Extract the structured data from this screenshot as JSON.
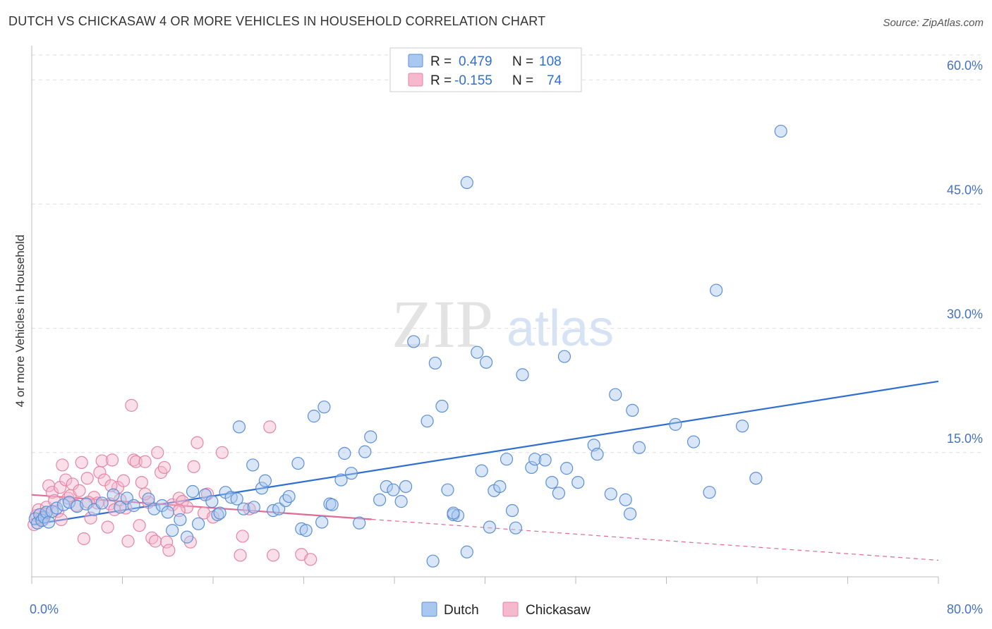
{
  "header": {
    "title": "DUTCH VS CHICKASAW 4 OR MORE VEHICLES IN HOUSEHOLD CORRELATION CHART",
    "source": "Source: ZipAtlas.com"
  },
  "watermark": {
    "zip": "ZIP",
    "atlas": "atlas"
  },
  "colors": {
    "dutch_fill": "#a9c8f0",
    "dutch_stroke": "#5b8fd6",
    "dutch_line": "#2f6fd1",
    "chickasaw_fill": "#f5b8cc",
    "chickasaw_stroke": "#e486a6",
    "chickasaw_line": "#e06a94",
    "grid": "#dddddd",
    "axis_text": "#4472c4"
  },
  "legend": {
    "rows": [
      {
        "r_label": "R =",
        "r_value": "0.479",
        "n_label": "N =",
        "n_value": "108"
      },
      {
        "r_label": "R =",
        "r_value": "-0.155",
        "n_label": "N =",
        "n_value": "74"
      }
    ]
  },
  "chart_data": {
    "type": "scatter",
    "title": "DUTCH VS CHICKASAW 4 OR MORE VEHICLES IN HOUSEHOLD CORRELATION CHART",
    "xlabel": "",
    "ylabel": "4 or more Vehicles in Household",
    "xlim": [
      0,
      80
    ],
    "ylim": [
      0,
      63
    ],
    "x_tick_labels": [
      "0.0%",
      "80.0%"
    ],
    "y_ticks": [
      15,
      30,
      45,
      60
    ],
    "y_tick_labels": [
      "15.0%",
      "30.0%",
      "45.0%",
      "60.0%"
    ],
    "grid": true,
    "legend_position": "top-center",
    "series": [
      {
        "name": "Dutch",
        "R": 0.479,
        "N": 108,
        "trend": {
          "x": [
            0,
            80
          ],
          "y": [
            6.3,
            23.6
          ],
          "dashed_from": null
        },
        "points": [
          [
            0.3,
            7.0
          ],
          [
            0.5,
            6.5
          ],
          [
            0.7,
            7.5
          ],
          [
            0.9,
            6.8
          ],
          [
            1.1,
            7.2
          ],
          [
            1.3,
            7.8
          ],
          [
            1.5,
            6.6
          ],
          [
            1.8,
            7.9
          ],
          [
            2.2,
            8.3
          ],
          [
            2.8,
            8.7
          ],
          [
            3.3,
            9.0
          ],
          [
            4.0,
            8.5
          ],
          [
            4.8,
            8.8
          ],
          [
            5.5,
            8.1
          ],
          [
            6.2,
            8.9
          ],
          [
            7.2,
            9.9
          ],
          [
            7.8,
            8.4
          ],
          [
            8.4,
            9.5
          ],
          [
            9.0,
            8.6
          ],
          [
            10.3,
            9.4
          ],
          [
            10.8,
            8.2
          ],
          [
            11.5,
            8.6
          ],
          [
            12.0,
            7.8
          ],
          [
            12.4,
            5.6
          ],
          [
            13.1,
            6.9
          ],
          [
            13.7,
            4.8
          ],
          [
            14.2,
            10.3
          ],
          [
            14.7,
            6.4
          ],
          [
            15.3,
            9.9
          ],
          [
            15.9,
            9.1
          ],
          [
            16.4,
            7.5
          ],
          [
            16.6,
            7.7
          ],
          [
            17.1,
            10.2
          ],
          [
            17.6,
            9.6
          ],
          [
            18.1,
            9.4
          ],
          [
            18.3,
            18.1
          ],
          [
            18.7,
            8.2
          ],
          [
            19.5,
            13.5
          ],
          [
            19.6,
            8.4
          ],
          [
            20.3,
            10.7
          ],
          [
            20.6,
            11.6
          ],
          [
            21.3,
            8.0
          ],
          [
            21.8,
            8.2
          ],
          [
            22.4,
            9.2
          ],
          [
            22.7,
            9.7
          ],
          [
            23.5,
            13.7
          ],
          [
            23.8,
            5.8
          ],
          [
            24.2,
            5.6
          ],
          [
            24.9,
            19.4
          ],
          [
            25.6,
            6.6
          ],
          [
            25.8,
            20.5
          ],
          [
            26.3,
            8.8
          ],
          [
            26.5,
            8.7
          ],
          [
            27.3,
            11.7
          ],
          [
            27.6,
            14.9
          ],
          [
            28.2,
            12.5
          ],
          [
            28.9,
            6.5
          ],
          [
            29.4,
            15.1
          ],
          [
            29.9,
            16.9
          ],
          [
            30.7,
            9.3
          ],
          [
            31.3,
            10.9
          ],
          [
            31.9,
            10.5
          ],
          [
            32.6,
            9.1
          ],
          [
            33.0,
            10.9
          ],
          [
            33.7,
            28.4
          ],
          [
            34.9,
            18.8
          ],
          [
            35.4,
            1.9
          ],
          [
            35.6,
            25.8
          ],
          [
            36.2,
            20.6
          ],
          [
            36.7,
            10.5
          ],
          [
            37.2,
            7.5
          ],
          [
            37.6,
            7.4
          ],
          [
            37.2,
            7.7
          ],
          [
            38.4,
            3.0
          ],
          [
            38.4,
            47.6
          ],
          [
            39.3,
            27.1
          ],
          [
            39.7,
            12.8
          ],
          [
            40.1,
            25.9
          ],
          [
            40.4,
            6.0
          ],
          [
            40.8,
            10.4
          ],
          [
            41.3,
            10.9
          ],
          [
            41.9,
            14.2
          ],
          [
            42.4,
            8.0
          ],
          [
            42.7,
            5.9
          ],
          [
            43.3,
            24.4
          ],
          [
            44.1,
            13.2
          ],
          [
            44.4,
            14.2
          ],
          [
            45.3,
            14.1
          ],
          [
            45.9,
            11.4
          ],
          [
            46.5,
            10.1
          ],
          [
            47.0,
            26.6
          ],
          [
            47.2,
            13.1
          ],
          [
            48.2,
            11.4
          ],
          [
            49.6,
            15.9
          ],
          [
            49.9,
            14.8
          ],
          [
            51.1,
            10.0
          ],
          [
            51.5,
            22.0
          ],
          [
            52.4,
            9.3
          ],
          [
            52.8,
            7.6
          ],
          [
            53.0,
            20.1
          ],
          [
            53.6,
            15.6
          ],
          [
            56.8,
            18.4
          ],
          [
            58.4,
            16.3
          ],
          [
            59.8,
            10.2
          ],
          [
            60.4,
            34.6
          ],
          [
            62.7,
            18.2
          ],
          [
            63.9,
            11.9
          ],
          [
            66.1,
            53.8
          ]
        ]
      },
      {
        "name": "Chickasaw",
        "R": -0.155,
        "N": 74,
        "trend": {
          "x": [
            0,
            80
          ],
          "y": [
            9.9,
            2.0
          ],
          "dashed_from": 30
        },
        "points": [
          [
            0.2,
            6.3
          ],
          [
            0.4,
            7.4
          ],
          [
            0.6,
            8.1
          ],
          [
            0.8,
            7.0
          ],
          [
            1.0,
            6.9
          ],
          [
            1.3,
            8.4
          ],
          [
            1.5,
            11.0
          ],
          [
            1.8,
            10.2
          ],
          [
            2.0,
            9.2
          ],
          [
            2.3,
            7.9
          ],
          [
            2.5,
            10.8
          ],
          [
            2.7,
            13.5
          ],
          [
            3.0,
            11.7
          ],
          [
            3.2,
            9.5
          ],
          [
            3.4,
            9.8
          ],
          [
            3.6,
            11.2
          ],
          [
            3.9,
            8.6
          ],
          [
            4.2,
            10.4
          ],
          [
            4.4,
            13.8
          ],
          [
            4.6,
            4.6
          ],
          [
            4.9,
            11.9
          ],
          [
            5.2,
            7.1
          ],
          [
            5.5,
            9.6
          ],
          [
            5.8,
            8.9
          ],
          [
            6.0,
            12.6
          ],
          [
            6.2,
            14.0
          ],
          [
            6.4,
            11.7
          ],
          [
            6.7,
            6.0
          ],
          [
            6.9,
            8.8
          ],
          [
            7.1,
            14.1
          ],
          [
            7.3,
            8.1
          ],
          [
            7.6,
            10.8
          ],
          [
            7.8,
            9.3
          ],
          [
            8.1,
            11.6
          ],
          [
            8.3,
            8.3
          ],
          [
            8.5,
            4.3
          ],
          [
            8.8,
            20.7
          ],
          [
            9.0,
            14.1
          ],
          [
            9.2,
            13.9
          ],
          [
            9.5,
            6.2
          ],
          [
            9.7,
            11.4
          ],
          [
            10.0,
            13.9
          ],
          [
            10.3,
            9.0
          ],
          [
            10.6,
            4.7
          ],
          [
            10.9,
            4.3
          ],
          [
            11.1,
            15.0
          ],
          [
            11.4,
            12.6
          ],
          [
            11.7,
            13.2
          ],
          [
            11.9,
            4.2
          ],
          [
            12.1,
            3.2
          ],
          [
            12.4,
            8.7
          ],
          [
            13.0,
            9.5
          ],
          [
            13.3,
            9.1
          ],
          [
            13.7,
            8.4
          ],
          [
            14.0,
            4.2
          ],
          [
            14.3,
            13.3
          ],
          [
            14.6,
            16.2
          ],
          [
            15.2,
            7.7
          ],
          [
            15.5,
            10.0
          ],
          [
            16.0,
            7.2
          ],
          [
            16.8,
            15.0
          ],
          [
            18.4,
            2.6
          ],
          [
            18.6,
            4.9
          ],
          [
            19.2,
            8.2
          ],
          [
            21.0,
            18.1
          ],
          [
            21.3,
            2.6
          ],
          [
            23.8,
            2.7
          ],
          [
            24.6,
            2.1
          ],
          [
            5.0,
            9.0
          ],
          [
            7.0,
            11.0
          ],
          [
            10.0,
            10.0
          ],
          [
            13.0,
            8.0
          ],
          [
            1.2,
            7.6
          ],
          [
            2.6,
            6.9
          ]
        ]
      }
    ]
  }
}
